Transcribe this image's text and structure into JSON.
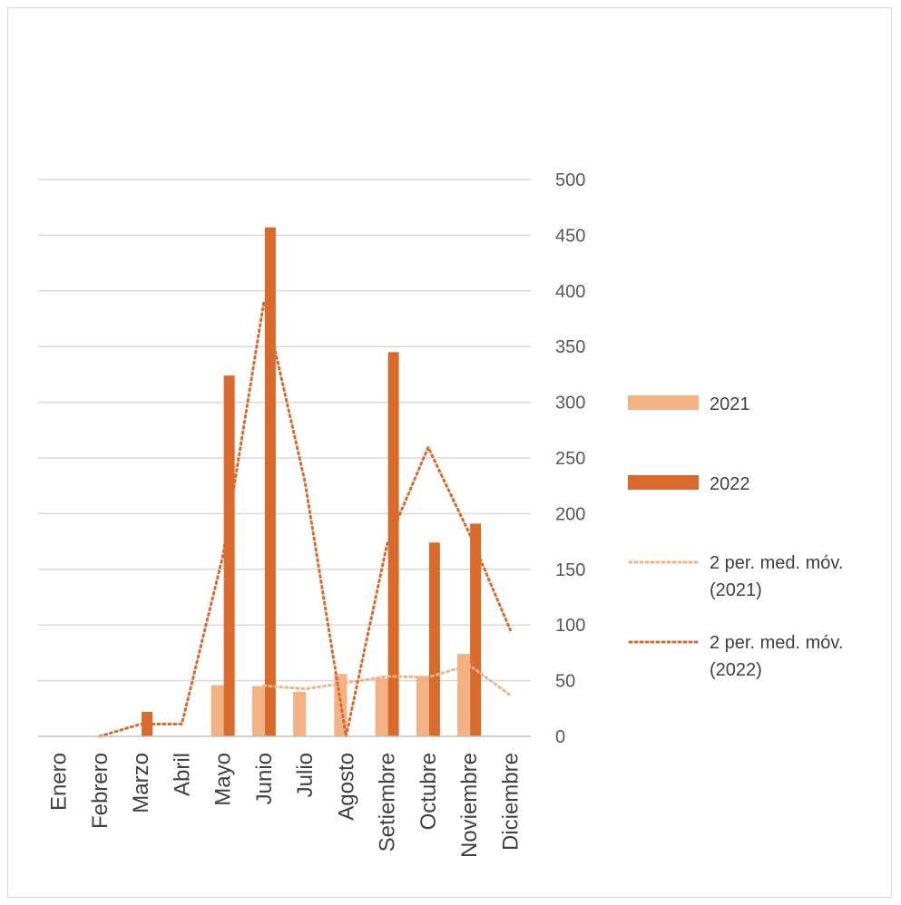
{
  "chart_data": {
    "type": "bar",
    "categories": [
      "Enero",
      "Febrero",
      "Marzo",
      "Abril",
      "Mayo",
      "Junio",
      "Julio",
      "Agosto",
      "Setiembre",
      "Octubre",
      "Noviembre",
      "Diciembre"
    ],
    "series": [
      {
        "name": "2021",
        "kind": "bar",
        "color": "#F4B183",
        "values": [
          0,
          0,
          0,
          0,
          46,
          45,
          40,
          56,
          52,
          54,
          74,
          0
        ]
      },
      {
        "name": "2022",
        "kind": "bar",
        "color": "#D86B2B",
        "values": [
          0,
          0,
          22,
          0,
          324,
          457,
          0,
          0,
          345,
          174,
          191,
          0
        ]
      }
    ],
    "trendlines": [
      {
        "name_line1": "2 per. med. móv.",
        "name_line2": "(2021)",
        "color": "#F4B183",
        "values": [
          null,
          null,
          null,
          null,
          null,
          45.5,
          42.5,
          48,
          54,
          53,
          64,
          37
        ]
      },
      {
        "name_line1": "2 per. med. móv.",
        "name_line2": "(2022)",
        "color": "#D86B2B",
        "values": [
          null,
          0,
          11,
          11,
          162,
          390.5,
          228.5,
          0,
          172.5,
          259.5,
          182.5,
          95.5
        ]
      }
    ],
    "y_axis": {
      "position": "right",
      "ylim": [
        0,
        500
      ],
      "ticks": [
        0,
        50,
        100,
        150,
        200,
        250,
        300,
        350,
        400,
        450,
        500
      ]
    },
    "title": "",
    "xlabel": "",
    "ylabel": "",
    "grid": true,
    "legend_position": "right"
  }
}
